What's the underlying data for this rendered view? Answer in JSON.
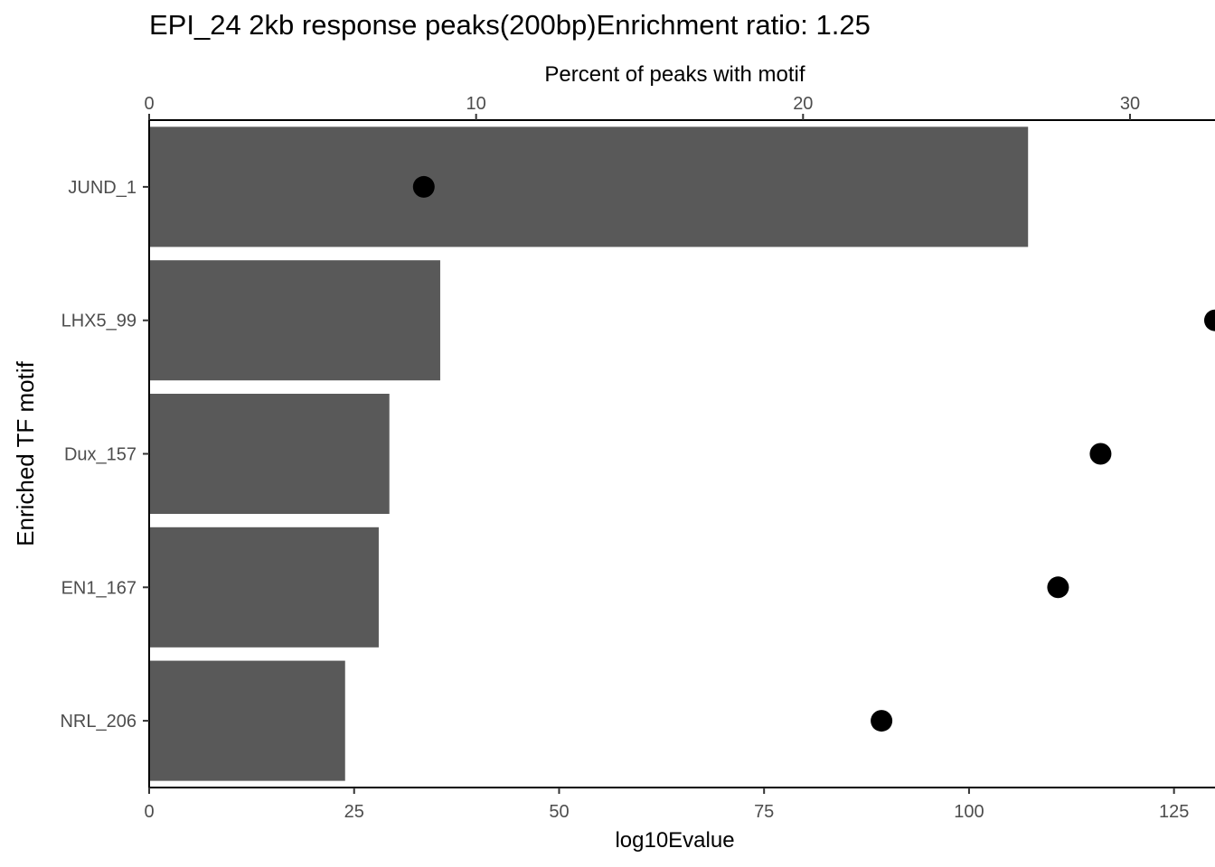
{
  "chart_data": {
    "type": "bar",
    "title": "EPI_24 2kb response peaks(200bp)Enrichment ratio: 1.25",
    "categories": [
      "JUND_1",
      "LHX5_99",
      "Dux_157",
      "EN1_167",
      "NRL_206"
    ],
    "bar_series": {
      "axis": "bottom",
      "values": [
        107.2,
        35.5,
        29.3,
        28.0,
        23.9
      ]
    },
    "point_series": {
      "axis": "top",
      "values": [
        8.4,
        32.6,
        29.1,
        27.8,
        22.4
      ]
    },
    "xlabel_bottom": "log10Evalue",
    "xlabel_top": "Percent of peaks with motif",
    "ylabel": "Enriched TF motif",
    "xlim_bottom": [
      0,
      130
    ],
    "xlim_top": [
      0,
      32.6
    ],
    "xticks_bottom": [
      0,
      25,
      50,
      75,
      100,
      125
    ],
    "xticks_top": [
      0,
      10,
      20,
      30
    ],
    "grid": false,
    "legend": "none",
    "colors": {
      "bar": "#595959",
      "point": "#000000",
      "axis": "#000000",
      "tick_label": "#4d4d4d"
    }
  }
}
